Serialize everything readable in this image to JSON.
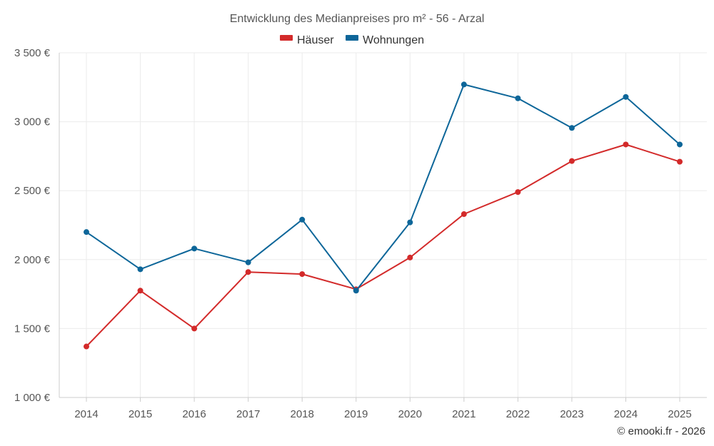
{
  "chart_data": {
    "type": "line",
    "title": "Entwicklung des Medianpreises pro m² - 56 - Arzal",
    "categories": [
      "2014",
      "2015",
      "2016",
      "2017",
      "2018",
      "2019",
      "2020",
      "2021",
      "2022",
      "2023",
      "2024",
      "2025"
    ],
    "series": [
      {
        "name": "Häuser",
        "color": "#d32a2a",
        "values": [
          1370,
          1775,
          1500,
          1910,
          1895,
          1785,
          2015,
          2330,
          2490,
          2715,
          2835,
          2710
        ]
      },
      {
        "name": "Wohnungen",
        "color": "#0d6699",
        "values": [
          2200,
          1930,
          2080,
          1980,
          2290,
          1775,
          2270,
          3270,
          3170,
          2955,
          3180,
          2835
        ]
      }
    ],
    "y_ticks": [
      1000,
      1500,
      2000,
      2500,
      3000,
      3500
    ],
    "y_tick_labels": [
      "1 000 €",
      "1 500 €",
      "2 000 €",
      "2 500 €",
      "3 000 €",
      "3 500 €"
    ],
    "ylim": [
      1000,
      3500
    ],
    "xlabel": "",
    "ylabel": "",
    "legend_position": "top-center",
    "grid": true
  },
  "credit": "© emooki.fr - 2026"
}
